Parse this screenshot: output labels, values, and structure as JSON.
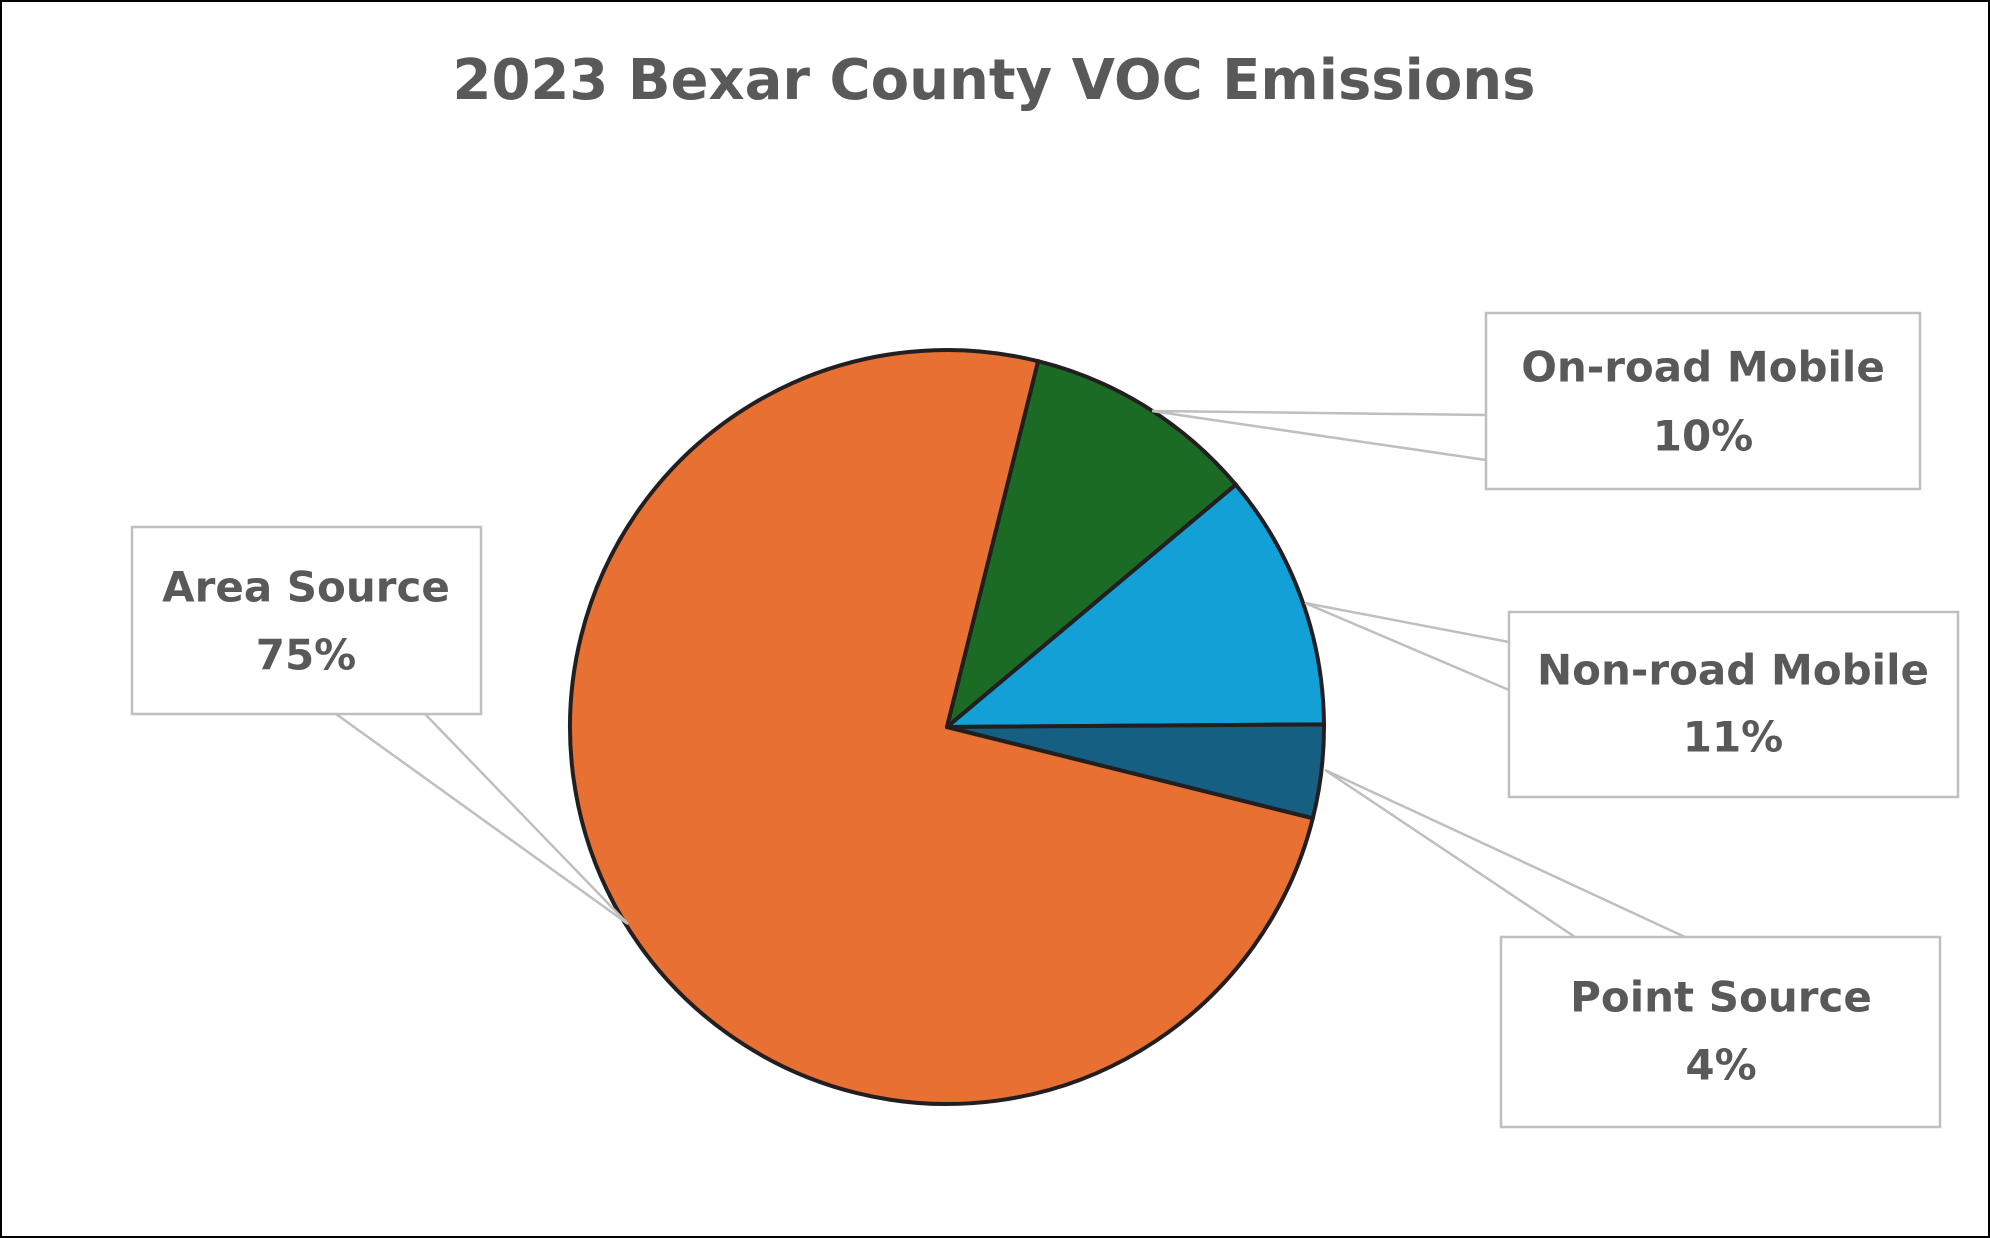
{
  "chart_data": {
    "type": "pie",
    "title": "2023 Bexar County VOC Emissions",
    "categories": [
      "Area Source",
      "On-road Mobile",
      "Non-road Mobile",
      "Point Source"
    ],
    "values": [
      75,
      10,
      11,
      4
    ],
    "value_labels": [
      "75%",
      "10%",
      "11%",
      "4%"
    ],
    "colors": [
      "#E87033",
      "#1B6B25",
      "#12A0D7",
      "#155F82"
    ]
  }
}
